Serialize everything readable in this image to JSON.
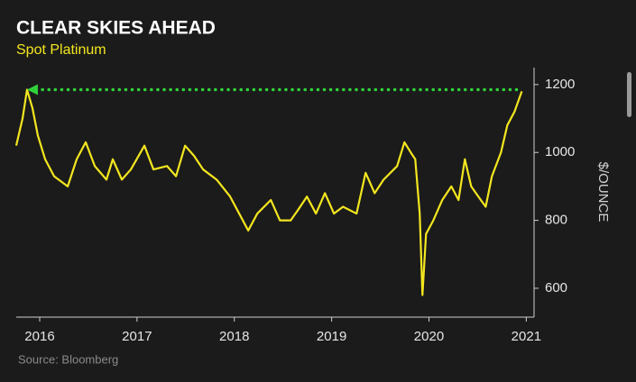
{
  "chart_data": {
    "type": "line",
    "title": "CLEAR SKIES AHEAD",
    "subtitle": "Spot Platinum",
    "y_label": "$/OUNCE",
    "source": "Source: Bloomberg",
    "xlim": [
      2015.759,
      2021.08
    ],
    "xticks": [
      2016,
      2017,
      2018,
      2019,
      2020,
      2021
    ],
    "ylim": [
      515,
      1250
    ],
    "yticks": [
      600,
      800,
      1000,
      1200
    ],
    "y_axis_side": "right",
    "grid": false,
    "x": [
      2015.759,
      2015.824,
      2015.87,
      2015.926,
      2015.981,
      2016.056,
      2016.148,
      2016.288,
      2016.38,
      2016.473,
      2016.566,
      2016.686,
      2016.751,
      2016.844,
      2016.937,
      2017.076,
      2017.169,
      2017.308,
      2017.401,
      2017.494,
      2017.586,
      2017.679,
      2017.818,
      2017.957,
      2018.05,
      2018.143,
      2018.236,
      2018.375,
      2018.468,
      2018.579,
      2018.653,
      2018.746,
      2018.839,
      2018.931,
      2019.024,
      2019.117,
      2019.256,
      2019.349,
      2019.442,
      2019.534,
      2019.673,
      2019.748,
      2019.813,
      2019.859,
      2019.905,
      2019.933,
      2019.97,
      2020.045,
      2020.137,
      2020.23,
      2020.304,
      2020.369,
      2020.434,
      2020.508,
      2020.583,
      2020.647,
      2020.74,
      2020.805,
      2020.879,
      2020.954
    ],
    "series": [
      {
        "name": "Spot Platinum",
        "color": "#f3e61f",
        "values": [
          1020,
          1100,
          1185,
          1130,
          1050,
          980,
          930,
          900,
          980,
          1030,
          960,
          920,
          980,
          920,
          950,
          1020,
          950,
          960,
          930,
          1020,
          990,
          950,
          920,
          870,
          820,
          770,
          820,
          860,
          800,
          800,
          830,
          870,
          820,
          880,
          820,
          840,
          820,
          940,
          880,
          920,
          960,
          1030,
          1000,
          980,
          820,
          580,
          760,
          800,
          860,
          900,
          860,
          980,
          900,
          870,
          840,
          930,
          1000,
          1080,
          1120,
          1180
        ]
      }
    ],
    "arrow_color": "#2fd13a"
  }
}
